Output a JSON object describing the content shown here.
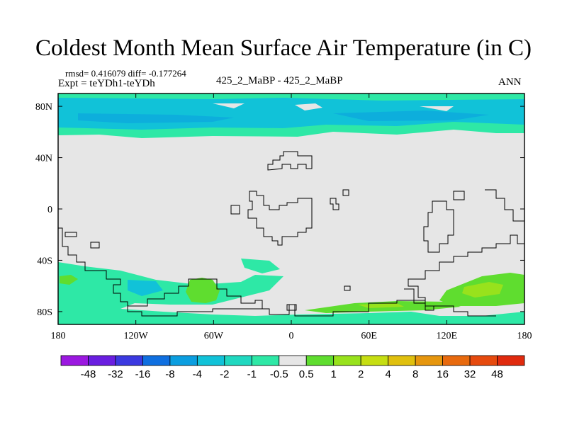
{
  "chart_data": {
    "type": "map-contour",
    "title": "Coldest Month Mean Surface Air Temperature (in C)",
    "stats": "rmsd= 0.416079 diff= -0.177264",
    "experiment": "Expt = teYDh1-teYDh",
    "subtitle": "425_2_MaBP - 425_2_MaBP",
    "season": "ANN",
    "xlim": [
      -180,
      180
    ],
    "ylim": [
      -90,
      90
    ],
    "x_ticks": [
      -180,
      -120,
      -60,
      0,
      60,
      120,
      180
    ],
    "x_tick_labels": [
      "180",
      "120W",
      "60W",
      "0",
      "60E",
      "120E",
      "180"
    ],
    "y_ticks": [
      80,
      40,
      0,
      -40,
      -80
    ],
    "y_tick_labels": [
      "80N",
      "40N",
      "0",
      "40S",
      "80S"
    ],
    "colorbar": {
      "labels": [
        "-48",
        "-32",
        "-16",
        "-8",
        "-4",
        "-2",
        "-1",
        "-0.5",
        "0.5",
        "1",
        "2",
        "4",
        "8",
        "16",
        "32",
        "48"
      ],
      "colors": [
        "#9b18e0",
        "#6a1ee0",
        "#3b39e0",
        "#0f6fe0",
        "#0b9ee0",
        "#11c2d8",
        "#20d8c0",
        "#2ee8a6",
        "#e6e6e6",
        "#5fdd2f",
        "#98e21c",
        "#c6de12",
        "#e0c00e",
        "#e6960e",
        "#e86a0e",
        "#e64a0e",
        "#e02a0e"
      ]
    },
    "field": {
      "background_color": "#e6e6e6",
      "regions": [
        {
          "label": "arctic band -1 to -2",
          "color_class": "-1",
          "lon": [
            -180,
            180
          ],
          "lat": [
            64,
            88
          ]
        },
        {
          "label": "arctic core -2 to -4",
          "color_class": "-2",
          "lon": [
            -180,
            180
          ],
          "lat": [
            68,
            78
          ]
        },
        {
          "label": "southern ocean cooling",
          "color_class": "-1",
          "lon": [
            -180,
            40
          ],
          "lat": [
            -90,
            -50
          ]
        },
        {
          "label": "antarctic peninsula warming",
          "color_class": "1",
          "lon": [
            -90,
            -55
          ],
          "lat": [
            -80,
            -55
          ]
        },
        {
          "label": "southwest pacific warming",
          "color_class": "1",
          "lon": [
            120,
            180
          ],
          "lat": [
            -78,
            -48
          ]
        },
        {
          "label": "east antarctic warming",
          "color_class": "1",
          "lon": [
            50,
            130
          ],
          "lat": [
            -82,
            -72
          ]
        }
      ]
    }
  }
}
